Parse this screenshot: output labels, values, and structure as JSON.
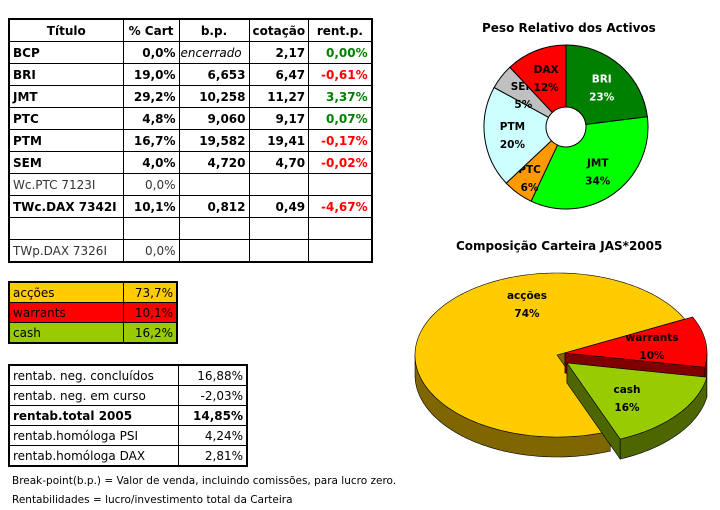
{
  "holdings": {
    "headers": [
      "Título",
      "% Cart",
      "b.p.",
      "cotação",
      "rent.p."
    ],
    "rows": [
      {
        "titulo": "BCP",
        "cart": "0,0%",
        "bp": "encerrado",
        "cotacao": "2,17",
        "rent": "0,00%",
        "sign": "pos",
        "style": "bold"
      },
      {
        "titulo": "BRI",
        "cart": "19,0%",
        "bp": "6,653",
        "cotacao": "6,47",
        "rent": "-0,61%",
        "sign": "neg",
        "style": "bold"
      },
      {
        "titulo": "JMT",
        "cart": "29,2%",
        "bp": "10,258",
        "cotacao": "11,27",
        "rent": "3,37%",
        "sign": "pos",
        "style": "bold"
      },
      {
        "titulo": "PTC",
        "cart": "4,8%",
        "bp": "9,060",
        "cotacao": "9,17",
        "rent": "0,07%",
        "sign": "pos",
        "style": "bold"
      },
      {
        "titulo": "PTM",
        "cart": "16,7%",
        "bp": "19,582",
        "cotacao": "19,41",
        "rent": "-0,17%",
        "sign": "neg",
        "style": "bold"
      },
      {
        "titulo": "SEM",
        "cart": "4,0%",
        "bp": "4,720",
        "cotacao": "4,70",
        "rent": "-0,02%",
        "sign": "neg",
        "style": "bold"
      },
      {
        "titulo": "Wc.PTC 7123I",
        "cart": "0,0%",
        "bp": "",
        "cotacao": "",
        "rent": "",
        "sign": "",
        "style": "light"
      },
      {
        "titulo": "TWc.DAX 7342I",
        "cart": "10,1%",
        "bp": "0,812",
        "cotacao": "0,49",
        "rent": "-4,67%",
        "sign": "neg",
        "style": "bold"
      },
      {
        "titulo": "",
        "cart": "",
        "bp": "",
        "cotacao": "",
        "rent": "",
        "sign": "",
        "style": "bold"
      },
      {
        "titulo": "TWp.DAX 7326I",
        "cart": "0,0%",
        "bp": "",
        "cotacao": "",
        "rent": "",
        "sign": "",
        "style": "light"
      }
    ]
  },
  "allocation": [
    {
      "label": "acções",
      "value": "73,7%",
      "color": "#FFCC00"
    },
    {
      "label": "warrants",
      "value": "10,1%",
      "color": "#FF0000"
    },
    {
      "label": "cash",
      "value": "16,2%",
      "color": "#99CC00"
    }
  ],
  "returns": [
    {
      "label": "rentab. neg. concluídos",
      "value": "16,88%"
    },
    {
      "label": "rentab. neg. em curso",
      "value": "-2,03%"
    },
    {
      "label": "rentab.total 2005",
      "value": "14,85%",
      "bold": true
    },
    {
      "label": "rentab.homóloga PSI",
      "value": "4,24%"
    },
    {
      "label": "rentab.homóloga DAX",
      "value": "2,81%"
    }
  ],
  "notes": [
    "Break-point(b.p.) = Valor de venda, incluindo comissões, para lucro zero.",
    "Rentabilidades = lucro/investimento total da Carteira"
  ],
  "chart_data": [
    {
      "type": "pie",
      "variant": "doughnut",
      "title": "Peso Relativo dos Activos",
      "categories": [
        "BRI",
        "JMT",
        "PTC",
        "PTM",
        "SEM",
        "DAX"
      ],
      "values": [
        23,
        34,
        6,
        20,
        5,
        12
      ],
      "labels": [
        "23%",
        "34%",
        "6%",
        "20%",
        "5%",
        "12%"
      ],
      "colors": [
        "#008000",
        "#00FF00",
        "#FF9900",
        "#CCFFFF",
        "#C0C0C0",
        "#FF0000"
      ],
      "label_colors": [
        "#FFFFFF",
        "#000000",
        "#000000",
        "#000000",
        "#000000",
        "#000000"
      ]
    },
    {
      "type": "pie",
      "variant": "3d-exploded",
      "title": "Composição Carteira JAS*2005",
      "categories": [
        "acções",
        "warrants",
        "cash"
      ],
      "values": [
        74,
        10,
        16
      ],
      "labels": [
        "74%",
        "10%",
        "16%"
      ],
      "colors": [
        "#FFCC00",
        "#FF0000",
        "#99CC00"
      ],
      "side_colors": [
        "#806600",
        "#800000",
        "#4D6600"
      ]
    }
  ]
}
